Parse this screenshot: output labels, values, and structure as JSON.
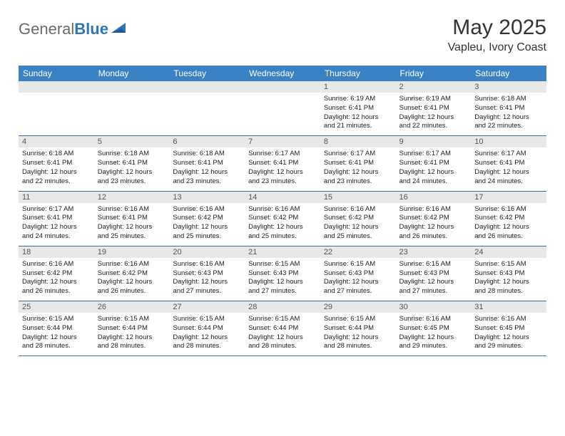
{
  "logo": {
    "word1": "General",
    "word2": "Blue"
  },
  "title": "May 2025",
  "location": "Vapleu, Ivory Coast",
  "weekday_bg": "#3b82c4",
  "weekday_fg": "#ffffff",
  "daystrip_bg": "#e8e8e8",
  "border_color": "#3b6fa3",
  "weekdays": [
    "Sunday",
    "Monday",
    "Tuesday",
    "Wednesday",
    "Thursday",
    "Friday",
    "Saturday"
  ],
  "weeks": [
    [
      null,
      null,
      null,
      null,
      {
        "n": "1",
        "sr": "6:19 AM",
        "ss": "6:41 PM",
        "dl": "12 hours and 21 minutes."
      },
      {
        "n": "2",
        "sr": "6:19 AM",
        "ss": "6:41 PM",
        "dl": "12 hours and 22 minutes."
      },
      {
        "n": "3",
        "sr": "6:18 AM",
        "ss": "6:41 PM",
        "dl": "12 hours and 22 minutes."
      }
    ],
    [
      {
        "n": "4",
        "sr": "6:18 AM",
        "ss": "6:41 PM",
        "dl": "12 hours and 22 minutes."
      },
      {
        "n": "5",
        "sr": "6:18 AM",
        "ss": "6:41 PM",
        "dl": "12 hours and 23 minutes."
      },
      {
        "n": "6",
        "sr": "6:18 AM",
        "ss": "6:41 PM",
        "dl": "12 hours and 23 minutes."
      },
      {
        "n": "7",
        "sr": "6:17 AM",
        "ss": "6:41 PM",
        "dl": "12 hours and 23 minutes."
      },
      {
        "n": "8",
        "sr": "6:17 AM",
        "ss": "6:41 PM",
        "dl": "12 hours and 23 minutes."
      },
      {
        "n": "9",
        "sr": "6:17 AM",
        "ss": "6:41 PM",
        "dl": "12 hours and 24 minutes."
      },
      {
        "n": "10",
        "sr": "6:17 AM",
        "ss": "6:41 PM",
        "dl": "12 hours and 24 minutes."
      }
    ],
    [
      {
        "n": "11",
        "sr": "6:17 AM",
        "ss": "6:41 PM",
        "dl": "12 hours and 24 minutes."
      },
      {
        "n": "12",
        "sr": "6:16 AM",
        "ss": "6:41 PM",
        "dl": "12 hours and 25 minutes."
      },
      {
        "n": "13",
        "sr": "6:16 AM",
        "ss": "6:42 PM",
        "dl": "12 hours and 25 minutes."
      },
      {
        "n": "14",
        "sr": "6:16 AM",
        "ss": "6:42 PM",
        "dl": "12 hours and 25 minutes."
      },
      {
        "n": "15",
        "sr": "6:16 AM",
        "ss": "6:42 PM",
        "dl": "12 hours and 25 minutes."
      },
      {
        "n": "16",
        "sr": "6:16 AM",
        "ss": "6:42 PM",
        "dl": "12 hours and 26 minutes."
      },
      {
        "n": "17",
        "sr": "6:16 AM",
        "ss": "6:42 PM",
        "dl": "12 hours and 26 minutes."
      }
    ],
    [
      {
        "n": "18",
        "sr": "6:16 AM",
        "ss": "6:42 PM",
        "dl": "12 hours and 26 minutes."
      },
      {
        "n": "19",
        "sr": "6:16 AM",
        "ss": "6:42 PM",
        "dl": "12 hours and 26 minutes."
      },
      {
        "n": "20",
        "sr": "6:16 AM",
        "ss": "6:43 PM",
        "dl": "12 hours and 27 minutes."
      },
      {
        "n": "21",
        "sr": "6:15 AM",
        "ss": "6:43 PM",
        "dl": "12 hours and 27 minutes."
      },
      {
        "n": "22",
        "sr": "6:15 AM",
        "ss": "6:43 PM",
        "dl": "12 hours and 27 minutes."
      },
      {
        "n": "23",
        "sr": "6:15 AM",
        "ss": "6:43 PM",
        "dl": "12 hours and 27 minutes."
      },
      {
        "n": "24",
        "sr": "6:15 AM",
        "ss": "6:43 PM",
        "dl": "12 hours and 28 minutes."
      }
    ],
    [
      {
        "n": "25",
        "sr": "6:15 AM",
        "ss": "6:44 PM",
        "dl": "12 hours and 28 minutes."
      },
      {
        "n": "26",
        "sr": "6:15 AM",
        "ss": "6:44 PM",
        "dl": "12 hours and 28 minutes."
      },
      {
        "n": "27",
        "sr": "6:15 AM",
        "ss": "6:44 PM",
        "dl": "12 hours and 28 minutes."
      },
      {
        "n": "28",
        "sr": "6:15 AM",
        "ss": "6:44 PM",
        "dl": "12 hours and 28 minutes."
      },
      {
        "n": "29",
        "sr": "6:15 AM",
        "ss": "6:44 PM",
        "dl": "12 hours and 28 minutes."
      },
      {
        "n": "30",
        "sr": "6:16 AM",
        "ss": "6:45 PM",
        "dl": "12 hours and 29 minutes."
      },
      {
        "n": "31",
        "sr": "6:16 AM",
        "ss": "6:45 PM",
        "dl": "12 hours and 29 minutes."
      }
    ]
  ],
  "labels": {
    "sunrise": "Sunrise: ",
    "sunset": "Sunset: ",
    "daylight": "Daylight: "
  }
}
